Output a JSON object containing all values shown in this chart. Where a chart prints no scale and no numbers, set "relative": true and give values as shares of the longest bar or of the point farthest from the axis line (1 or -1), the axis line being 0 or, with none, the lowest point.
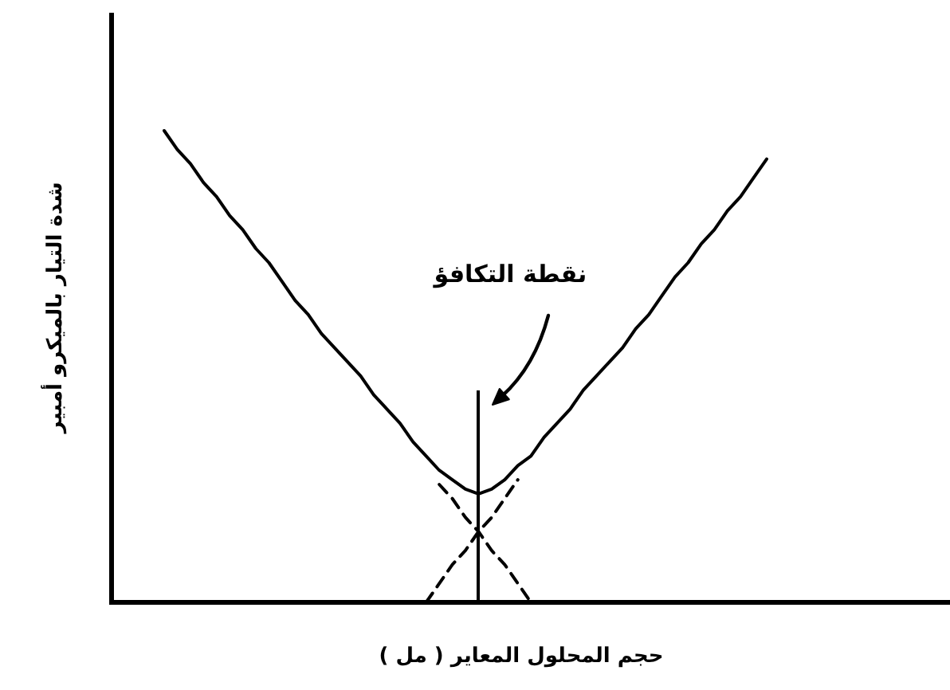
{
  "chart_data": {
    "type": "line",
    "relative": true,
    "marker": "none",
    "xlabel": "حجم المحلول المعاير ( مل )",
    "ylabel": "شدة التيار بالميكرو أمبير",
    "annotations": [
      "نقطة التكافؤ"
    ],
    "categories": [
      null,
      null,
      null,
      null,
      null,
      null,
      null,
      null,
      null,
      null,
      null,
      null,
      null,
      null,
      null,
      null,
      null,
      null,
      null,
      null,
      null,
      null,
      null,
      null,
      null,
      null,
      null,
      null,
      null,
      null,
      null,
      null,
      null,
      null,
      null,
      null,
      null,
      null,
      null,
      null,
      null,
      null,
      null,
      null,
      null,
      null,
      null
    ],
    "series": [
      {
        "color": "#000000",
        "values": [
          1,
          0.96,
          0.93,
          0.89,
          0.86,
          0.82,
          0.79,
          0.75,
          0.72,
          0.68,
          0.64,
          0.61,
          0.57,
          0.54,
          0.51,
          0.48,
          0.44,
          0.41,
          0.38,
          0.34,
          0.31,
          0.28,
          0.26,
          0.24,
          0.23,
          0.24,
          0.26,
          0.29,
          0.31,
          0.35,
          0.38,
          0.41,
          0.45,
          0.48,
          0.51,
          0.54,
          0.58,
          0.61,
          0.65,
          0.69,
          0.72,
          0.76,
          0.79,
          0.83,
          0.86,
          0.9,
          0.94
        ]
      },
      {
        "color": "#000000",
        "line_style": "dashed",
        "values": [
          null,
          null,
          null,
          null,
          null,
          null,
          null,
          null,
          null,
          null,
          null,
          null,
          null,
          null,
          null,
          null,
          null,
          null,
          null,
          null,
          null,
          0.25,
          0.22,
          0.18,
          0.15,
          0.11,
          0.08,
          0.04,
          0,
          null,
          null,
          null,
          null,
          null,
          null,
          null,
          null,
          null,
          null,
          null,
          null,
          null,
          null,
          null,
          null,
          null,
          null
        ]
      },
      {
        "color": "#000000",
        "line_style": "dashed",
        "values": [
          null,
          null,
          null,
          null,
          null,
          null,
          null,
          null,
          null,
          null,
          null,
          null,
          null,
          null,
          null,
          null,
          null,
          null,
          null,
          null,
          0,
          0.04,
          0.08,
          0.11,
          0.15,
          0.18,
          0.22,
          0.26,
          null,
          null,
          null,
          null,
          null,
          null,
          null,
          null,
          null,
          null,
          null,
          null,
          null,
          null,
          null,
          null,
          null,
          null,
          null
        ]
      }
    ]
  }
}
